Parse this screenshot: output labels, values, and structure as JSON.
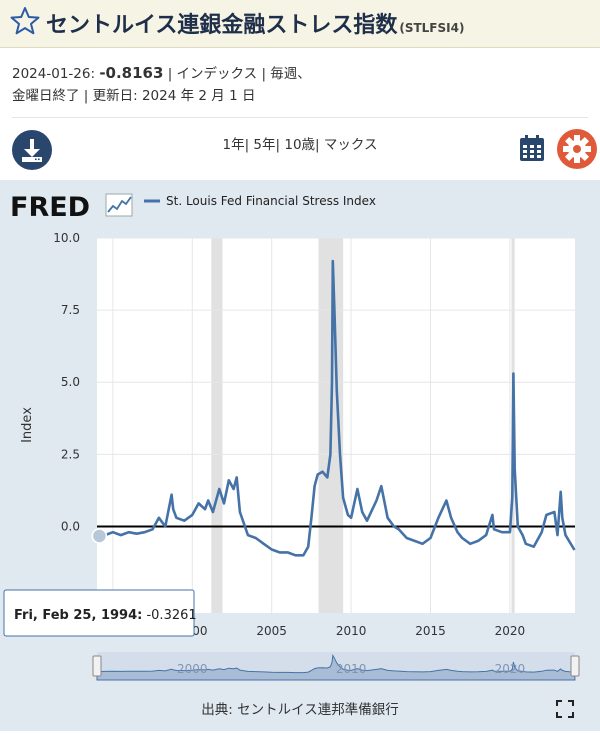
{
  "header": {
    "title": "セントルイス連銀金融ストレス指数",
    "series_code": "(STLFSI4)"
  },
  "meta": {
    "date": "2024-01-26:",
    "value": "-0.8163",
    "units": "| インデックス | 毎週、",
    "line2": "金曜日終了 | 更新日: 2024 年 2 月 1 日"
  },
  "toolbar": {
    "ranges_label": "1年| 5年| 10歳| マックス",
    "download_icon": "download-icon",
    "calendar_icon": "calendar-icon",
    "settings_icon": "gear-icon"
  },
  "fred": {
    "logo_text": "FRED",
    "legend_label": "St. Louis Fed Financial Stress Index"
  },
  "tooltip": {
    "date": "Fri, Feb 25, 1994:",
    "value": "-0.3261"
  },
  "navigator": {
    "labels": [
      "2000",
      "2010",
      "2020"
    ]
  },
  "footer": {
    "source": "出典: セントルイス連邦準備銀行"
  },
  "colors": {
    "line": "#4572a7",
    "recession": "#e1e1e1",
    "zero_line": "#000000",
    "gear": "#e05a3a",
    "brand": "#29466d"
  },
  "chart_data": {
    "type": "line",
    "title": "",
    "xlabel": "",
    "ylabel": "Index",
    "xlim": [
      1994.0,
      2024.1
    ],
    "ylim": [
      -3,
      10
    ],
    "yticks": [
      "0.0",
      "2.5",
      "5.0",
      "7.5",
      "10.0"
    ],
    "ytick_values": [
      0,
      2.5,
      5,
      7.5,
      10
    ],
    "xticks": [
      "1995",
      "2000",
      "2005",
      "2010",
      "2015",
      "2020"
    ],
    "xtick_values": [
      1995,
      2000,
      2005,
      2010,
      2015,
      2020
    ],
    "recessions": [
      [
        2001.2,
        2001.9
      ],
      [
        2007.95,
        2009.5
      ],
      [
        2020.1,
        2020.3
      ]
    ],
    "zero_line": 0,
    "series": [
      {
        "name": "St. Louis Fed Financial Stress Index",
        "x": [
          1994.0,
          1994.15,
          1994.5,
          1995.0,
          1995.5,
          1996.0,
          1996.5,
          1997.0,
          1997.5,
          1997.9,
          1998.3,
          1998.7,
          1998.8,
          1999.0,
          1999.5,
          2000.0,
          2000.4,
          2000.8,
          2001.0,
          2001.3,
          2001.7,
          2002.0,
          2002.3,
          2002.6,
          2002.8,
          2003.0,
          2003.5,
          2004.0,
          2004.5,
          2005.0,
          2005.5,
          2006.0,
          2006.5,
          2007.0,
          2007.3,
          2007.5,
          2007.7,
          2007.9,
          2008.2,
          2008.5,
          2008.7,
          2008.8,
          2008.85,
          2008.95,
          2009.1,
          2009.3,
          2009.5,
          2009.8,
          2010.0,
          2010.4,
          2010.7,
          2011.0,
          2011.6,
          2011.9,
          2012.3,
          2012.7,
          2013.0,
          2013.5,
          2014.0,
          2014.5,
          2015.0,
          2015.5,
          2016.0,
          2016.3,
          2016.7,
          2017.0,
          2017.5,
          2018.0,
          2018.5,
          2018.9,
          2019.0,
          2019.5,
          2020.0,
          2020.15,
          2020.22,
          2020.3,
          2020.5,
          2020.8,
          2021.0,
          2021.5,
          2022.0,
          2022.3,
          2022.8,
          2023.0,
          2023.2,
          2023.3,
          2023.5,
          2024.07
        ],
        "values": [
          -0.2,
          -0.33,
          -0.3,
          -0.2,
          -0.3,
          -0.2,
          -0.25,
          -0.2,
          -0.1,
          0.3,
          0.0,
          1.1,
          0.6,
          0.3,
          0.2,
          0.4,
          0.8,
          0.6,
          0.9,
          0.5,
          1.3,
          0.8,
          1.6,
          1.3,
          1.7,
          0.5,
          -0.3,
          -0.4,
          -0.6,
          -0.8,
          -0.9,
          -0.9,
          -1.0,
          -1.0,
          -0.7,
          0.3,
          1.4,
          1.8,
          1.9,
          1.7,
          2.5,
          5.0,
          9.2,
          7.5,
          4.7,
          2.5,
          1.0,
          0.4,
          0.3,
          1.3,
          0.5,
          0.2,
          0.9,
          1.4,
          0.3,
          0.0,
          -0.1,
          -0.4,
          -0.5,
          -0.6,
          -0.4,
          0.3,
          0.9,
          0.3,
          -0.2,
          -0.4,
          -0.6,
          -0.5,
          -0.3,
          0.4,
          -0.1,
          -0.2,
          -0.2,
          1.0,
          5.3,
          2.0,
          0.0,
          -0.3,
          -0.6,
          -0.7,
          -0.2,
          0.4,
          0.5,
          -0.3,
          1.2,
          0.3,
          -0.3,
          -0.8163
        ]
      }
    ]
  }
}
